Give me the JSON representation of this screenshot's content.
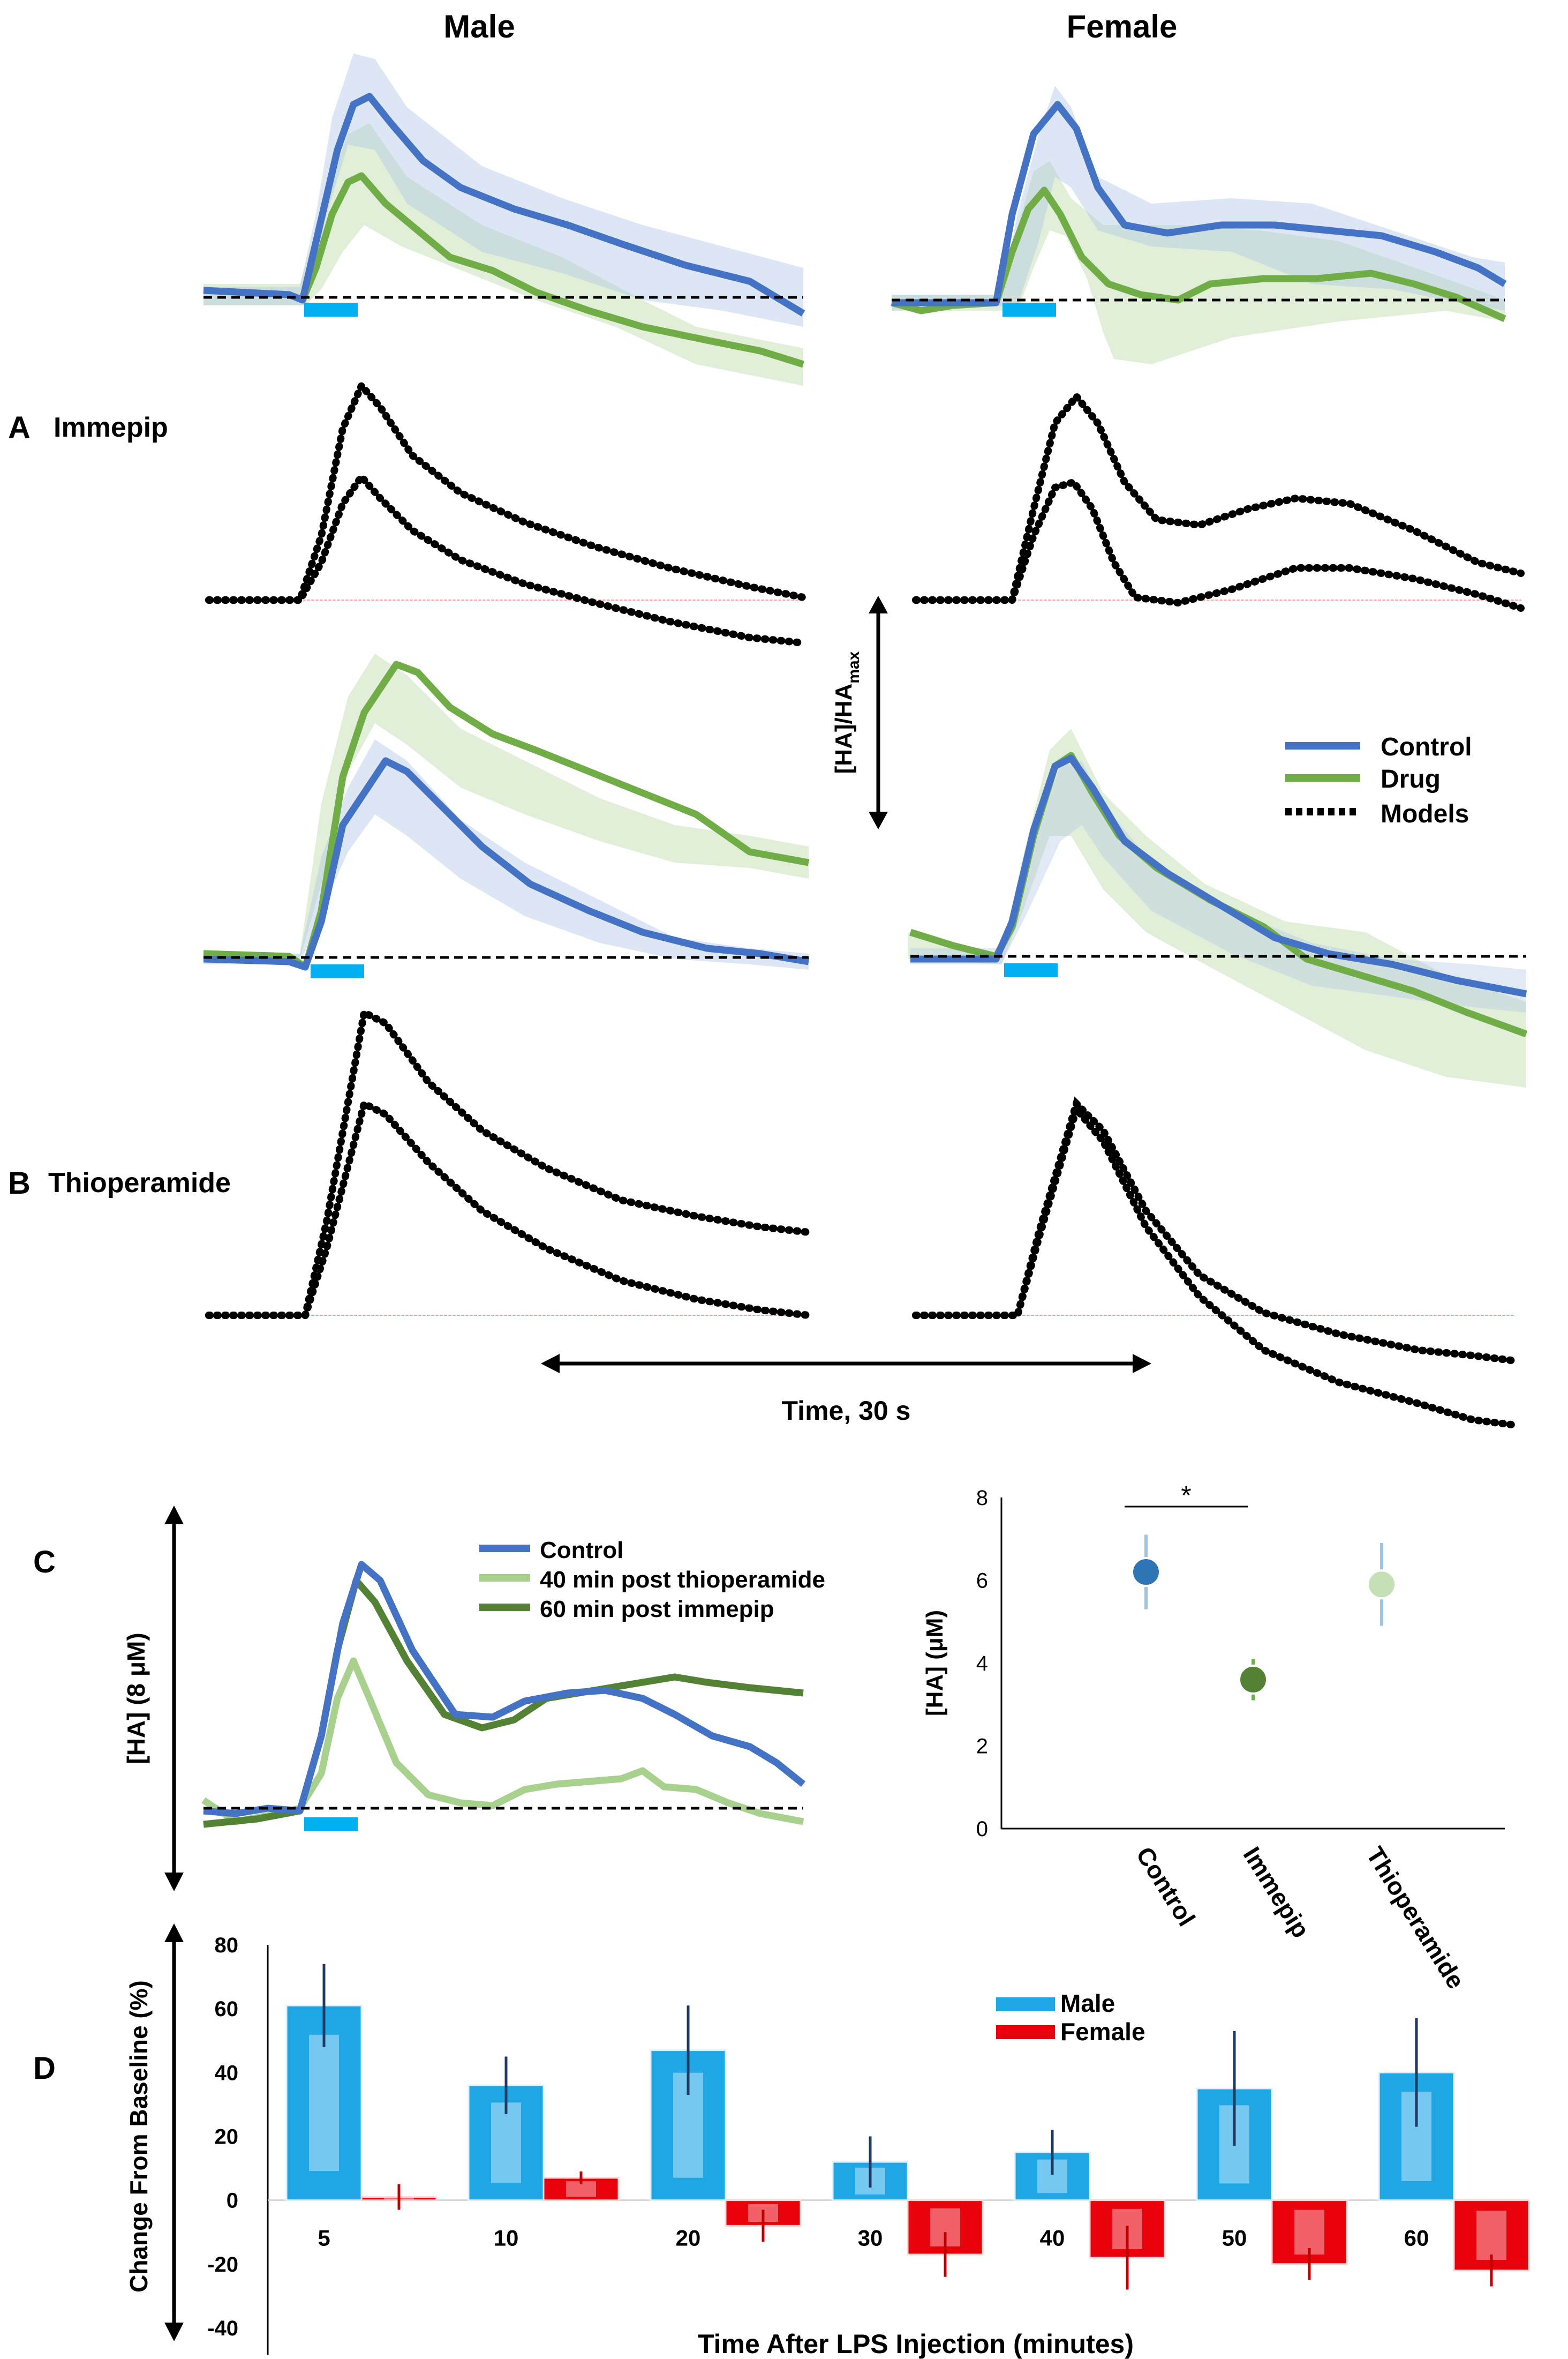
{
  "colors": {
    "control": "#4472C4",
    "drug": "#70AD47",
    "light_drug": "#A9D18E",
    "dark_drug": "#548235",
    "stim": "#00B0F0",
    "male": "#1FA7E5",
    "female": "#E8000B",
    "model": "#000000"
  },
  "headers": {
    "male": "Male",
    "female": "Female"
  },
  "panel_a": {
    "letter": "A",
    "label": "Immepip"
  },
  "panel_b": {
    "letter": "B",
    "label": "Thioperamide"
  },
  "panel_c": {
    "letter": "C"
  },
  "panel_d": {
    "letter": "D"
  },
  "scale": {
    "vertical": "[HA]/HA",
    "vertical_sub": "max",
    "time": "Time, 30 s",
    "c_axis": "[HA] (8 μM)"
  },
  "legend_ab": {
    "control": "Control",
    "drug": "Drug",
    "models": "Models"
  },
  "legend_c": {
    "control": "Control",
    "thio": "40 min post thioperamide",
    "immepip": "60 min post immepip"
  },
  "legend_d": {
    "male": "Male",
    "female": "Female"
  },
  "chart_data": [
    {
      "type": "scatter",
      "title": "",
      "ylabel": "[HA] (μM)",
      "xlabel": "",
      "ylim": [
        0,
        8
      ],
      "yticks": [
        "0",
        "2",
        "4",
        "6",
        "8"
      ],
      "categories": [
        "Control",
        "Immepip",
        "Thioperamide"
      ],
      "values": [
        6.2,
        3.6,
        5.9
      ],
      "errors": [
        0.9,
        0.5,
        1.0
      ],
      "significance": "*"
    },
    {
      "type": "bar",
      "title": "",
      "ylabel": "Change From Baseline (%)",
      "xlabel": "Time After LPS Injection (minutes)",
      "ylim": [
        -40,
        80
      ],
      "yticks": [
        "-40",
        "-20",
        "0",
        "20",
        "40",
        "60",
        "80"
      ],
      "categories": [
        "5",
        "10",
        "20",
        "30",
        "40",
        "50",
        "60"
      ],
      "series": [
        {
          "name": "Male",
          "values": [
            61,
            36,
            47,
            12,
            15,
            35,
            40
          ],
          "errors": [
            13,
            9,
            14,
            8,
            7,
            18,
            17
          ]
        },
        {
          "name": "Female",
          "values": [
            1,
            7,
            -8,
            -17,
            -18,
            -20,
            -22
          ],
          "errors": [
            4,
            2,
            5,
            7,
            10,
            5,
            5
          ]
        }
      ]
    }
  ]
}
